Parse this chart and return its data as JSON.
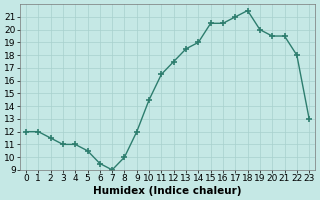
{
  "title": "",
  "xlabel": "Humidex (Indice chaleur)",
  "x_vals": [
    0,
    1,
    2,
    3,
    4,
    5,
    6,
    7,
    8,
    9,
    10,
    11,
    12,
    13,
    14,
    15,
    16,
    17,
    18,
    19,
    20,
    21,
    22,
    23
  ],
  "y_vals": [
    12,
    12,
    11.5,
    11,
    11,
    10.5,
    9.5,
    9,
    10,
    12,
    14.5,
    16.5,
    17.5,
    18.5,
    19,
    20.5,
    20.5,
    21,
    21.5,
    20,
    19.5,
    19.5,
    18,
    13
  ],
  "ylim": [
    9,
    22
  ],
  "xlim": [
    -0.5,
    23.5
  ],
  "yticks": [
    9,
    10,
    11,
    12,
    13,
    14,
    15,
    16,
    17,
    18,
    19,
    20,
    21
  ],
  "xticks": [
    0,
    1,
    2,
    3,
    4,
    5,
    6,
    7,
    8,
    9,
    10,
    11,
    12,
    13,
    14,
    15,
    16,
    17,
    18,
    19,
    20,
    21,
    22,
    23
  ],
  "line_color": "#2d7d6e",
  "bg_color": "#c5e8e5",
  "grid_color": "#a8d0ce",
  "tick_fontsize": 6.5,
  "label_fontsize": 7.5
}
